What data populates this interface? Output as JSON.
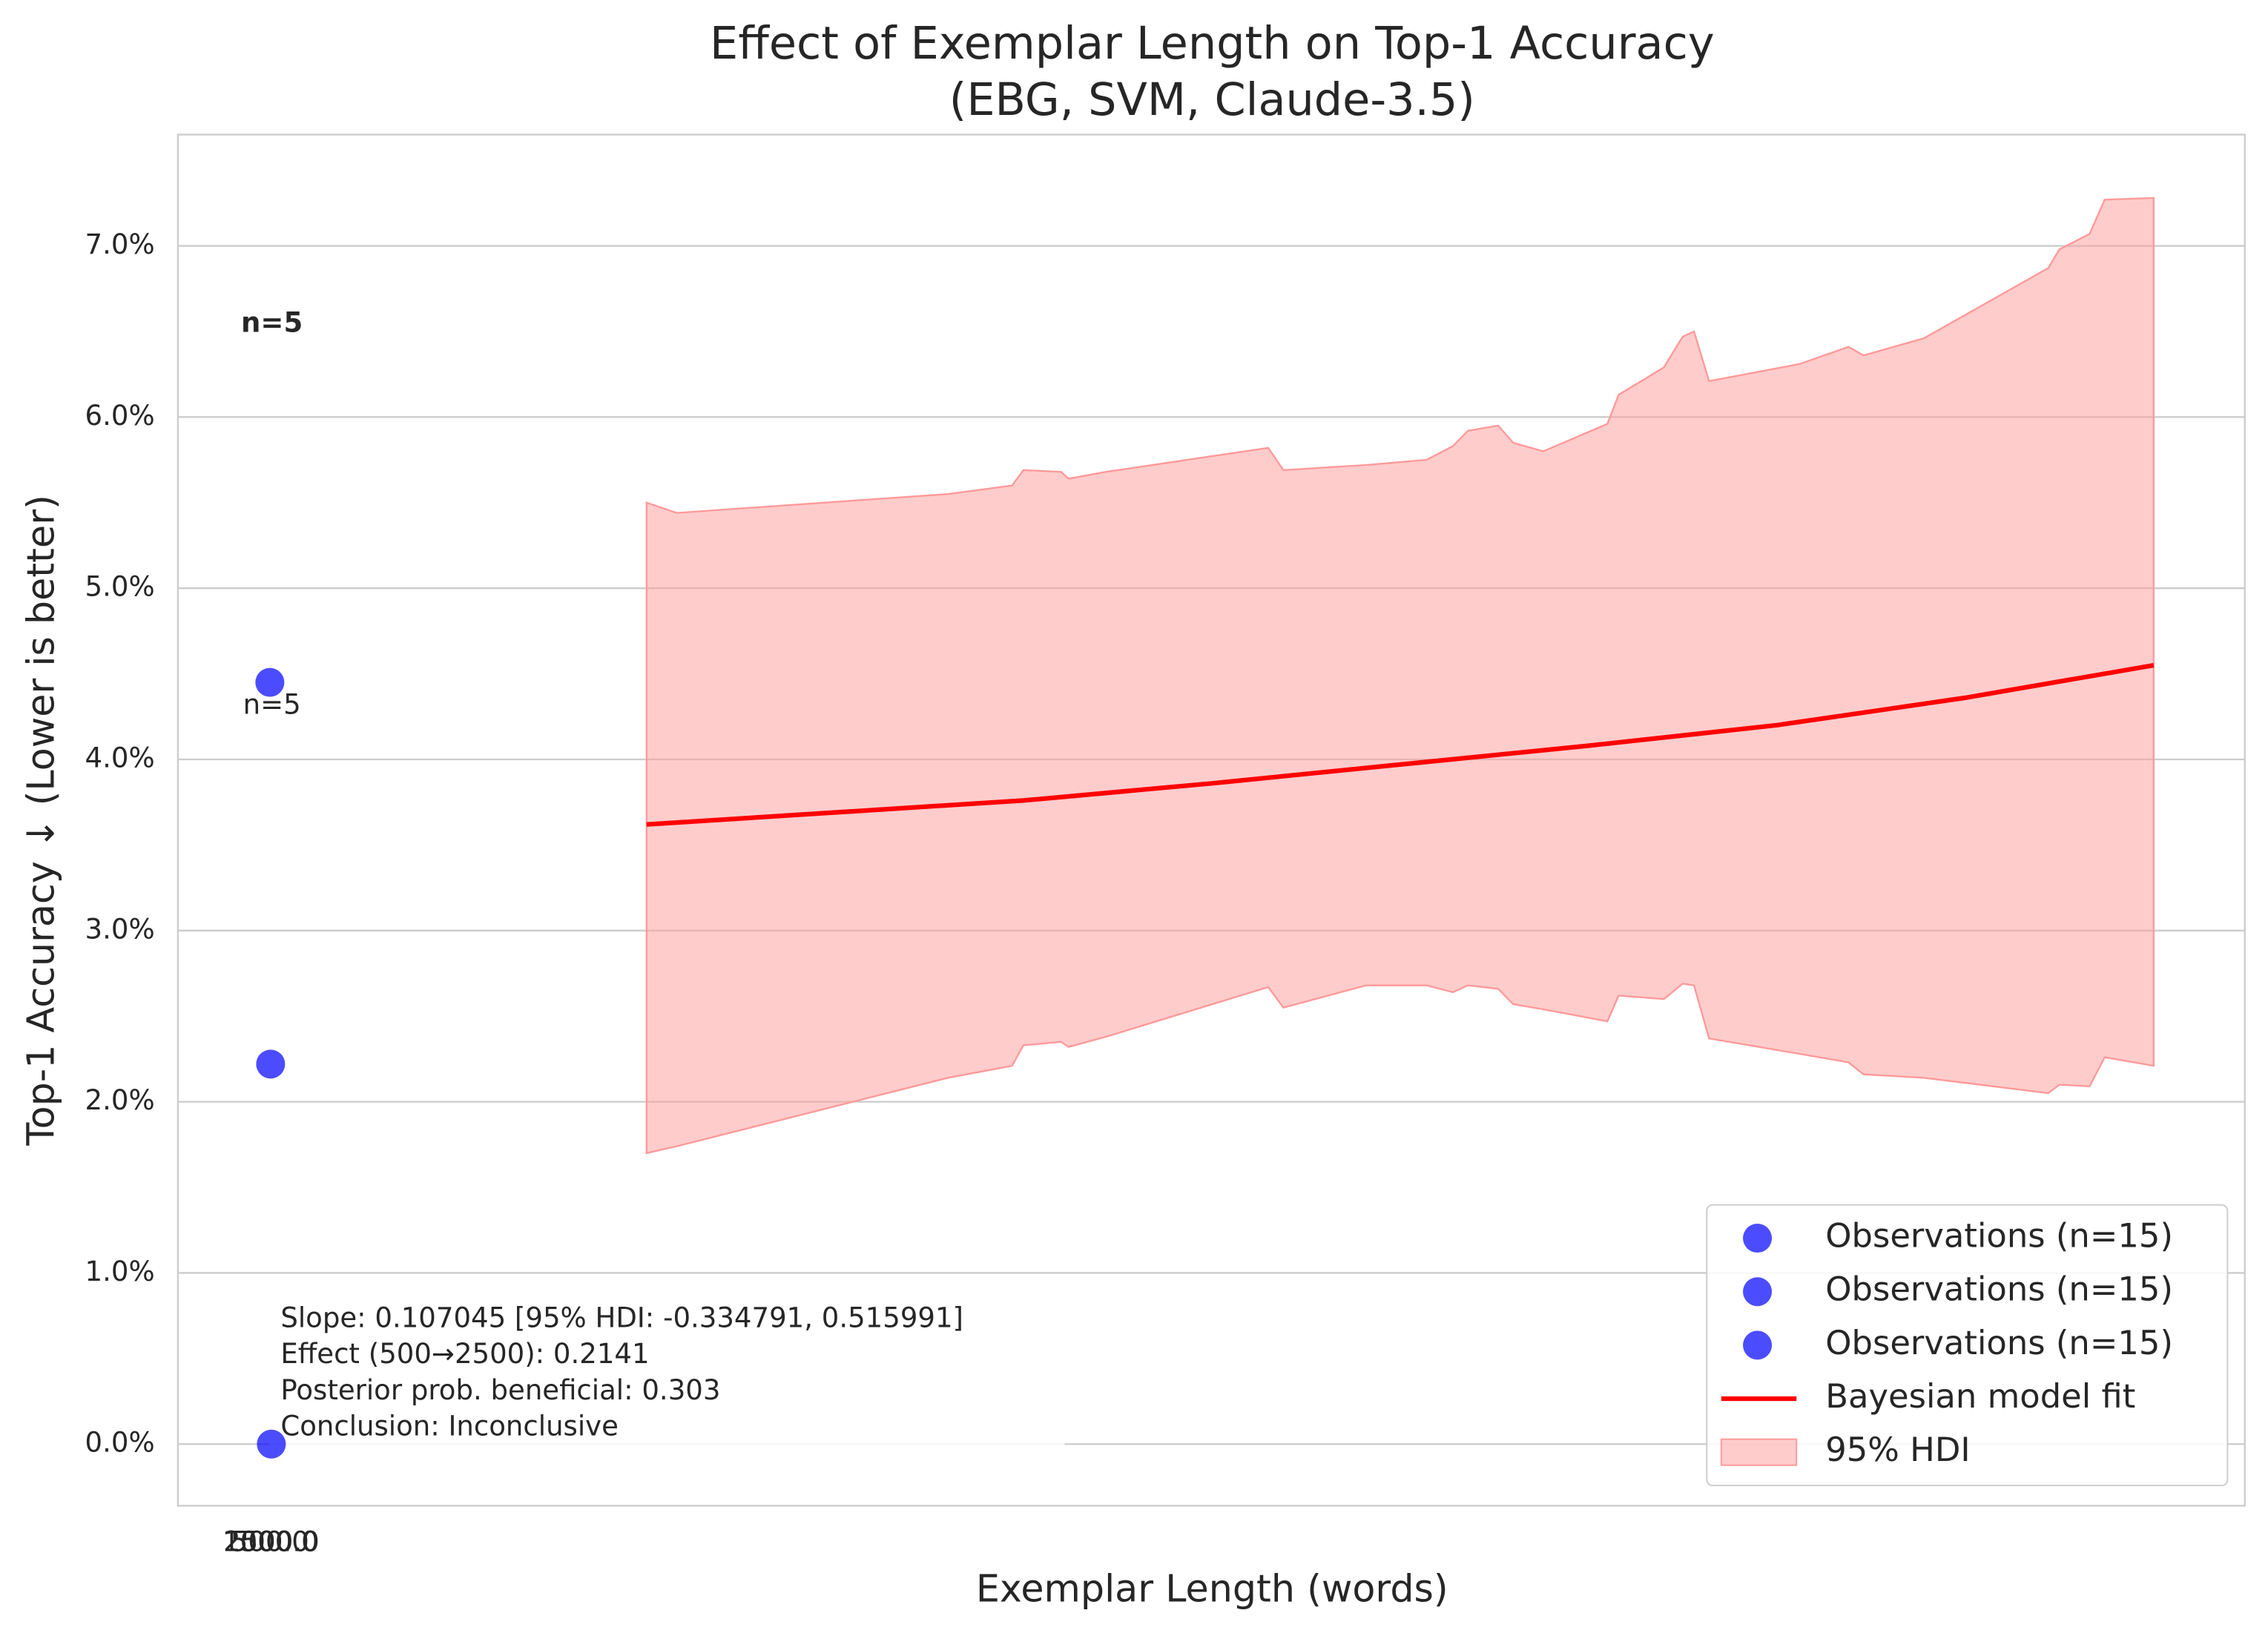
{
  "chart_data": {
    "type": "scatter",
    "title": "Effect of Exemplar Length on Top-1 Accuracy",
    "subtitle": "(EBG, SVM, Claude-3.5)",
    "x_label": "Exemplar Length (words)",
    "y_label": "Top-1 Accuracy ↓ (Lower is better)",
    "xlim": [
      -122,
      2621
    ],
    "ylim": [
      -0.36,
      7.65
    ],
    "xticks": [
      {
        "value": 0,
        "label": "500.0"
      },
      {
        "value": 1,
        "label": "1000.0"
      },
      {
        "value": 2,
        "label": "2500.0"
      }
    ],
    "yticks": [
      {
        "value": 0,
        "label": "0.0%"
      },
      {
        "value": 1,
        "label": "1.0%"
      },
      {
        "value": 2,
        "label": "2.0%"
      },
      {
        "value": 3,
        "label": "3.0%"
      },
      {
        "value": 4,
        "label": "4.0%"
      },
      {
        "value": 5,
        "label": "5.0%"
      },
      {
        "value": 6,
        "label": "6.0%"
      },
      {
        "value": 7,
        "label": "7.0%"
      }
    ],
    "grid": true,
    "legend": "lower right",
    "series": [
      {
        "name": "Observations (n=15)",
        "color": "#0000ff",
        "x": [
          0
        ],
        "values": [
          4.45
        ]
      },
      {
        "name": "Observations (n=15)",
        "color": "#0000ff",
        "x": [
          1
        ],
        "values": [
          2.22
        ]
      },
      {
        "name": "Observations (n=15)",
        "color": "#0000ff",
        "x": [
          2
        ],
        "values": [
          0.0
        ]
      }
    ],
    "fit": {
      "name": "Bayesian model fit",
      "color": "#ff0000",
      "x": [
        500,
        750,
        1000,
        1250,
        1500,
        1750,
        2000,
        2250,
        2500
      ],
      "values": [
        3.62,
        3.69,
        3.76,
        3.86,
        3.97,
        4.08,
        4.2,
        4.36,
        4.55
      ]
    },
    "hdi": {
      "name": "95% HDI",
      "color": "#ff9999",
      "x": [
        500,
        540,
        900,
        985,
        1000,
        1050,
        1060,
        1110,
        1325,
        1345,
        1455,
        1535,
        1570,
        1590,
        1630,
        1650,
        1690,
        1775,
        1790,
        1850,
        1875,
        1890,
        1910,
        2030,
        2095,
        2115,
        2195,
        2360,
        2375,
        2415,
        2435,
        2500
      ],
      "upper": [
        5.5,
        5.44,
        5.55,
        5.6,
        5.69,
        5.68,
        5.64,
        5.68,
        5.82,
        5.69,
        5.72,
        5.75,
        5.83,
        5.92,
        5.95,
        5.85,
        5.8,
        5.96,
        6.13,
        6.29,
        6.47,
        6.5,
        6.21,
        6.31,
        6.41,
        6.36,
        6.46,
        6.87,
        6.98,
        7.07,
        7.27,
        7.28
      ],
      "lower": [
        1.7,
        1.74,
        2.14,
        2.21,
        2.33,
        2.35,
        2.32,
        2.38,
        2.67,
        2.55,
        2.68,
        2.68,
        2.64,
        2.68,
        2.66,
        2.57,
        2.54,
        2.47,
        2.62,
        2.6,
        2.69,
        2.68,
        2.37,
        2.28,
        2.23,
        2.16,
        2.14,
        2.05,
        2.1,
        2.09,
        2.26,
        2.21
      ]
    },
    "annotations": [
      {
        "text": "n=5",
        "bold": true
      },
      {
        "text": "n=5",
        "bold": false
      }
    ],
    "stats": [
      "Slope: 0.107045 [95% HDI: -0.334791, 0.515991]",
      "Effect (500→2500): 0.2141",
      "Posterior prob. beneficial: 0.303",
      "Conclusion: Inconclusive"
    ]
  }
}
